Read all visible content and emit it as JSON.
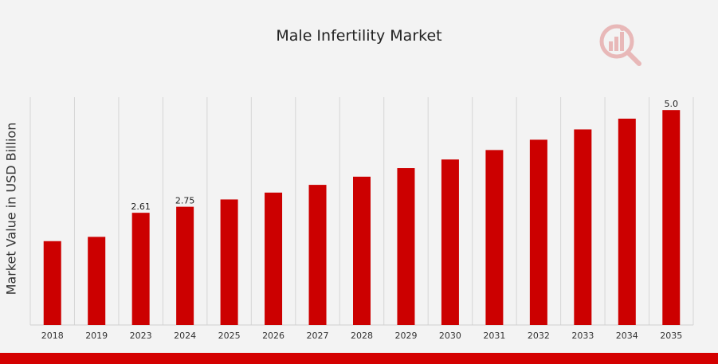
{
  "chart_data": {
    "type": "bar",
    "title": "Male Infertility Market",
    "ylabel": "Market Value in USD Billion",
    "xlabel": "",
    "categories": [
      "2018",
      "2019",
      "2023",
      "2024",
      "2025",
      "2026",
      "2027",
      "2028",
      "2029",
      "2030",
      "2031",
      "2032",
      "2033",
      "2034",
      "2035"
    ],
    "values": [
      1.95,
      2.05,
      2.61,
      2.75,
      2.92,
      3.08,
      3.26,
      3.45,
      3.65,
      3.85,
      4.07,
      4.31,
      4.55,
      4.8,
      5.0
    ],
    "data_labels": [
      {
        "index": 2,
        "text": "2.61"
      },
      {
        "index": 3,
        "text": "2.75"
      },
      {
        "index": 14,
        "text": "5.0"
      }
    ],
    "ylim": [
      0,
      5.3
    ],
    "grid": "vertical",
    "bar_color": "#cc0000"
  },
  "colors": {
    "background": "#f3f3f3",
    "accent": "#d40000",
    "logo": "#e8b8b8"
  },
  "logo": {
    "icon": "analytics-magnifier-icon"
  }
}
